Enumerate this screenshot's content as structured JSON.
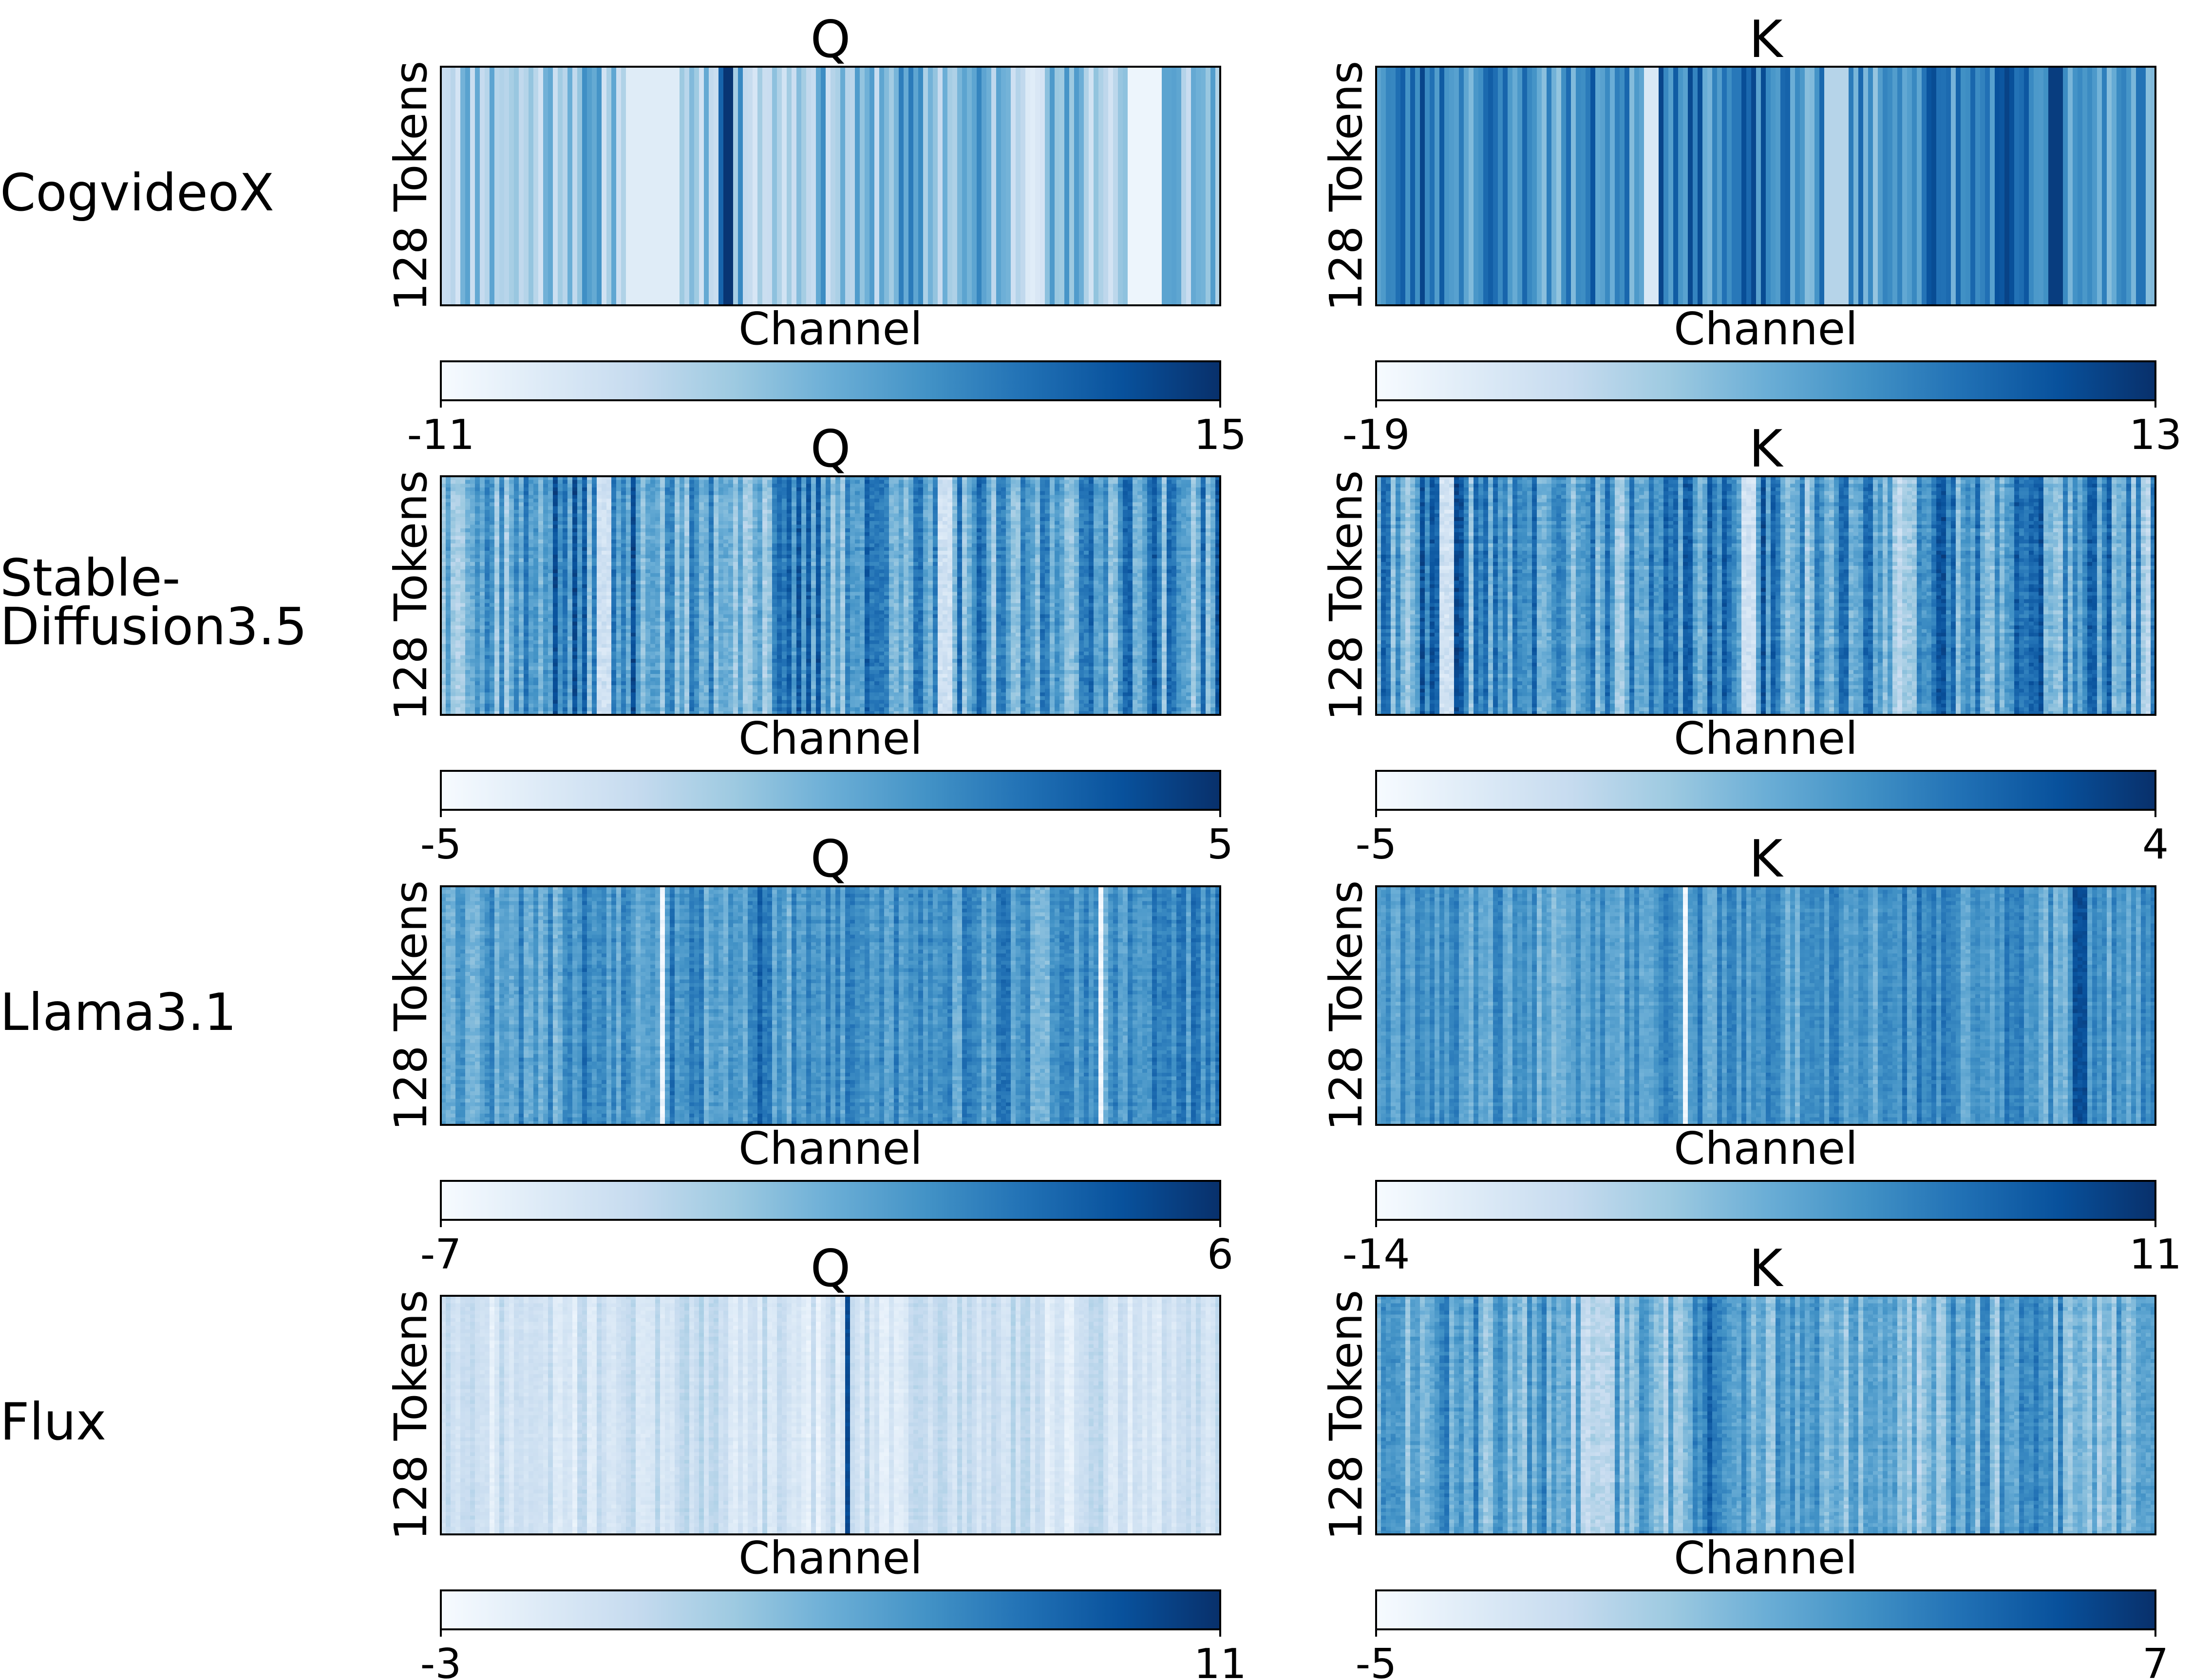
{
  "chart_data": {
    "type": "heatmap",
    "colormap": "Blues",
    "xlabel": "Channel",
    "ylabel": "128 Tokens",
    "rows": [
      {
        "model": "CogvideoX",
        "panels": [
          {
            "title": "Q",
            "vmin": -11,
            "vmax": 15,
            "vmin_label": "-11",
            "vmax_label": "15",
            "pattern": "smooth",
            "seed": 11,
            "base": 0.42,
            "stripe_amp": 0.28,
            "noise": 0.0,
            "strong": [
              {
                "c": 0.365,
                "v": 0.98,
                "w": 0.004
              },
              {
                "c": 0.36,
                "v": 0.8,
                "w": 0.003
              },
              {
                "c": 0.905,
                "v": 0.05,
                "w": 0.02
              },
              {
                "c": 0.27,
                "v": 0.12,
                "w": 0.03
              }
            ]
          },
          {
            "title": "K",
            "vmin": -19,
            "vmax": 13,
            "vmin_label": "-19",
            "vmax_label": "13",
            "pattern": "smooth",
            "seed": 23,
            "base": 0.66,
            "stripe_amp": 0.25,
            "noise": 0.0,
            "strong": [
              {
                "c": 0.36,
                "v": 0.92,
                "w": 0.008
              },
              {
                "c": 0.355,
                "v": 0.15,
                "w": 0.004
              },
              {
                "c": 0.875,
                "v": 0.95,
                "w": 0.008
              },
              {
                "c": 0.59,
                "v": 0.3,
                "w": 0.01
              }
            ]
          }
        ]
      },
      {
        "model": "Stable-\nDiffusion3.5",
        "panels": [
          {
            "title": "Q",
            "vmin": -5,
            "vmax": 5,
            "vmin_label": "-5",
            "vmax_label": "5",
            "pattern": "noisy",
            "seed": 37,
            "base": 0.58,
            "stripe_amp": 0.3,
            "noise": 0.12,
            "strong": [
              {
                "c": 0.205,
                "v": 0.2,
                "w": 0.004
              },
              {
                "c": 0.65,
                "v": 0.2,
                "w": 0.004
              }
            ]
          },
          {
            "title": "K",
            "vmin": -5,
            "vmax": 4,
            "vmin_label": "-5",
            "vmax_label": "4",
            "pattern": "noisy",
            "seed": 41,
            "base": 0.6,
            "stripe_amp": 0.3,
            "noise": 0.12,
            "strong": [
              {
                "c": 0.09,
                "v": 0.2,
                "w": 0.004
              },
              {
                "c": 0.48,
                "v": 0.2,
                "w": 0.004
              }
            ]
          }
        ]
      },
      {
        "model": "Llama3.1",
        "panels": [
          {
            "title": "Q",
            "vmin": -7,
            "vmax": 6,
            "vmin_label": "-7",
            "vmax_label": "6",
            "pattern": "noisy",
            "seed": 53,
            "base": 0.62,
            "stripe_amp": 0.18,
            "noise": 0.1,
            "strong": [
              {
                "c": 0.285,
                "v": 0.04,
                "w": 0.003
              },
              {
                "c": 0.85,
                "v": 0.04,
                "w": 0.003
              },
              {
                "c": 0.41,
                "v": 0.82,
                "w": 0.003
              }
            ]
          },
          {
            "title": "K",
            "vmin": -14,
            "vmax": 11,
            "vmin_label": "-14",
            "vmax_label": "11",
            "pattern": "noisy",
            "seed": 67,
            "base": 0.6,
            "stripe_amp": 0.15,
            "noise": 0.08,
            "strong": [
              {
                "c": 0.395,
                "v": 0.03,
                "w": 0.003
              },
              {
                "c": 0.905,
                "v": 0.88,
                "w": 0.004
              }
            ]
          }
        ]
      },
      {
        "model": "Flux",
        "panels": [
          {
            "title": "Q",
            "vmin": -3,
            "vmax": 11,
            "vmin_label": "-3",
            "vmax_label": "11",
            "pattern": "noisy",
            "seed": 71,
            "base": 0.2,
            "stripe_amp": 0.12,
            "noise": 0.05,
            "strong": [
              {
                "c": 0.525,
                "v": 0.9,
                "w": 0.003
              }
            ]
          },
          {
            "title": "K",
            "vmin": -5,
            "vmax": 7,
            "vmin_label": "-5",
            "vmax_label": "7",
            "pattern": "noisy",
            "seed": 83,
            "base": 0.5,
            "stripe_amp": 0.22,
            "noise": 0.1,
            "strong": [
              {
                "c": 0.425,
                "v": 0.82,
                "w": 0.003
              }
            ]
          }
        ]
      }
    ]
  }
}
